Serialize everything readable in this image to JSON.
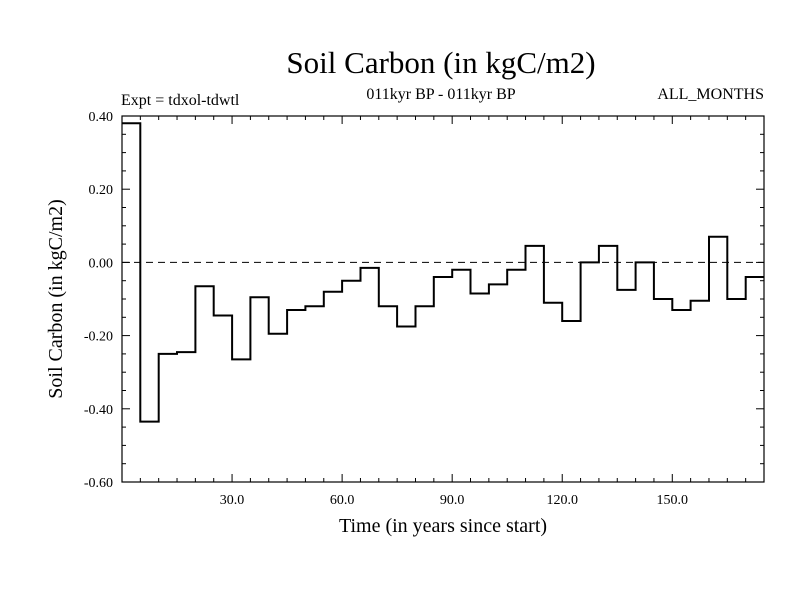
{
  "chart_data": {
    "type": "line",
    "style": "step",
    "title": "Soil Carbon (in kgC/m2)",
    "subtitle": "011kyr BP - 011kyr BP",
    "left_label": "Expt = tdxol-tdwtl",
    "right_label": "ALL_MONTHS",
    "xlabel": "Time (in years since start)",
    "ylabel": "Soil Carbon (in kgC/m2)",
    "xlim": [
      0,
      175
    ],
    "ylim": [
      -0.6,
      0.4
    ],
    "x_ticks": [
      30,
      60,
      90,
      120,
      150
    ],
    "x_tick_labels": [
      "30.0",
      "60.0",
      "90.0",
      "120.0",
      "150.0"
    ],
    "y_ticks": [
      0.4,
      0.2,
      0.0,
      -0.2,
      -0.4,
      -0.6
    ],
    "y_tick_labels": [
      "0.40",
      "0.20",
      "0.00",
      "-0.20",
      "-0.40",
      "-0.60"
    ],
    "reference_line": 0.0,
    "step_width": 5,
    "series": [
      {
        "name": "tdxol-tdwtl",
        "x": [
          0,
          5,
          10,
          15,
          20,
          25,
          30,
          35,
          40,
          45,
          50,
          55,
          60,
          65,
          70,
          75,
          80,
          85,
          90,
          95,
          100,
          105,
          110,
          115,
          120,
          125,
          130,
          135,
          140,
          145,
          150,
          155,
          160,
          165,
          170
        ],
        "values": [
          0.38,
          -0.435,
          -0.25,
          -0.245,
          -0.065,
          -0.145,
          -0.265,
          -0.095,
          -0.195,
          -0.13,
          -0.12,
          -0.08,
          -0.05,
          -0.015,
          -0.12,
          -0.175,
          -0.12,
          -0.04,
          -0.02,
          -0.085,
          -0.06,
          -0.02,
          0.045,
          -0.11,
          -0.16,
          0.0,
          0.045,
          -0.075,
          0.0,
          -0.1,
          -0.13,
          -0.105,
          0.07,
          -0.1,
          -0.04
        ]
      }
    ]
  }
}
